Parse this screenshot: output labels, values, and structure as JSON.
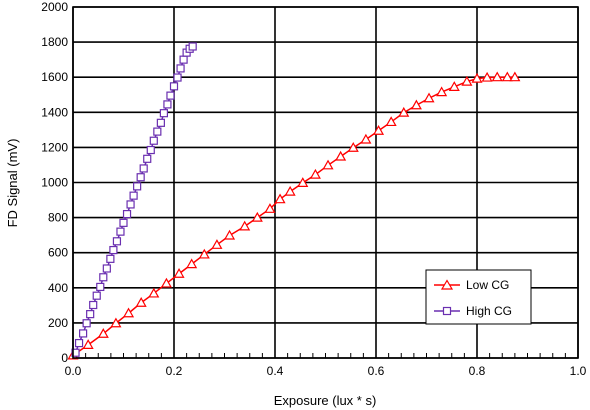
{
  "chart_data": {
    "type": "scatter",
    "title": "",
    "xlabel": "Exposure (lux * s)",
    "ylabel": "FD Signal (mV)",
    "xlim": [
      0,
      1.0
    ],
    "ylim": [
      0,
      2000
    ],
    "x_ticks": [
      "0.0",
      "0.2",
      "0.4",
      "0.6",
      "0.8",
      "1.0"
    ],
    "y_ticks": [
      "0",
      "200",
      "400",
      "600",
      "800",
      "1000",
      "1200",
      "1400",
      "1600",
      "1800",
      "2000"
    ],
    "grid": true,
    "legend_position": "bottom-right",
    "series": [
      {
        "name": "Low CG",
        "color": "#ff0000",
        "marker": "triangle",
        "points": [
          [
            0.0,
            15
          ],
          [
            0.03,
            75
          ],
          [
            0.06,
            138
          ],
          [
            0.085,
            198
          ],
          [
            0.11,
            255
          ],
          [
            0.135,
            315
          ],
          [
            0.16,
            368
          ],
          [
            0.185,
            425
          ],
          [
            0.21,
            480
          ],
          [
            0.235,
            535
          ],
          [
            0.26,
            590
          ],
          [
            0.285,
            645
          ],
          [
            0.31,
            698
          ],
          [
            0.34,
            750
          ],
          [
            0.365,
            800
          ],
          [
            0.39,
            850
          ],
          [
            0.41,
            905
          ],
          [
            0.43,
            948
          ],
          [
            0.455,
            998
          ],
          [
            0.48,
            1045
          ],
          [
            0.505,
            1098
          ],
          [
            0.53,
            1148
          ],
          [
            0.555,
            1198
          ],
          [
            0.58,
            1245
          ],
          [
            0.605,
            1295
          ],
          [
            0.63,
            1345
          ],
          [
            0.655,
            1398
          ],
          [
            0.68,
            1440
          ],
          [
            0.705,
            1480
          ],
          [
            0.73,
            1515
          ],
          [
            0.755,
            1545
          ],
          [
            0.78,
            1575
          ],
          [
            0.8,
            1592
          ],
          [
            0.82,
            1598
          ],
          [
            0.84,
            1600
          ],
          [
            0.86,
            1600
          ],
          [
            0.875,
            1600
          ]
        ]
      },
      {
        "name": "High CG",
        "color": "#6a2fb0",
        "marker": "square",
        "points": [
          [
            0.005,
            30
          ],
          [
            0.012,
            85
          ],
          [
            0.02,
            140
          ],
          [
            0.027,
            198
          ],
          [
            0.034,
            250
          ],
          [
            0.04,
            302
          ],
          [
            0.047,
            355
          ],
          [
            0.054,
            405
          ],
          [
            0.06,
            460
          ],
          [
            0.067,
            510
          ],
          [
            0.074,
            565
          ],
          [
            0.08,
            615
          ],
          [
            0.087,
            665
          ],
          [
            0.094,
            720
          ],
          [
            0.1,
            770
          ],
          [
            0.107,
            820
          ],
          [
            0.114,
            875
          ],
          [
            0.12,
            925
          ],
          [
            0.127,
            978
          ],
          [
            0.134,
            1030
          ],
          [
            0.14,
            1080
          ],
          [
            0.147,
            1135
          ],
          [
            0.154,
            1185
          ],
          [
            0.16,
            1238
          ],
          [
            0.167,
            1290
          ],
          [
            0.174,
            1340
          ],
          [
            0.18,
            1395
          ],
          [
            0.187,
            1445
          ],
          [
            0.193,
            1495
          ],
          [
            0.2,
            1548
          ],
          [
            0.207,
            1598
          ],
          [
            0.213,
            1650
          ],
          [
            0.219,
            1700
          ],
          [
            0.225,
            1740
          ],
          [
            0.231,
            1762
          ],
          [
            0.237,
            1775
          ]
        ]
      }
    ]
  }
}
